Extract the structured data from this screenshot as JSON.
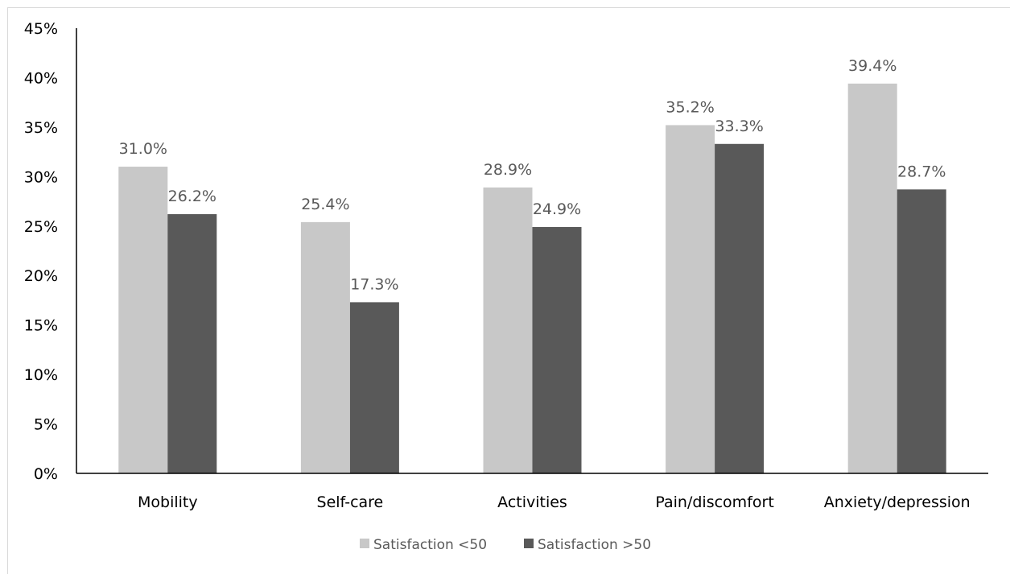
{
  "chart_data": {
    "type": "bar",
    "categories": [
      "Mobility",
      "Self-care",
      "Activities",
      "Pain/discomfort",
      "Anxiety/depression"
    ],
    "series": [
      {
        "name": "Satisfaction <50",
        "values": [
          31.0,
          25.4,
          28.9,
          35.2,
          39.4
        ],
        "color": "#c8c8c8"
      },
      {
        "name": "Satisfaction >50",
        "values": [
          26.2,
          17.3,
          24.9,
          33.3,
          28.7
        ],
        "color": "#595959"
      }
    ],
    "data_labels": [
      [
        "31.0%",
        "25.4%",
        "28.9%",
        "35.2%",
        "39.4%"
      ],
      [
        "26.2%",
        "17.3%",
        "24.9%",
        "33.3%",
        "28.7%"
      ]
    ],
    "y_ticks": [
      0,
      5,
      10,
      15,
      20,
      25,
      30,
      35,
      40,
      45
    ],
    "y_tick_labels": [
      "0%",
      "5%",
      "10%",
      "15%",
      "20%",
      "25%",
      "30%",
      "35%",
      "40%",
      "45%"
    ],
    "ylim": [
      0,
      45
    ],
    "title": "",
    "xlabel": "",
    "ylabel": "",
    "grid": false,
    "legend_position": "bottom"
  }
}
